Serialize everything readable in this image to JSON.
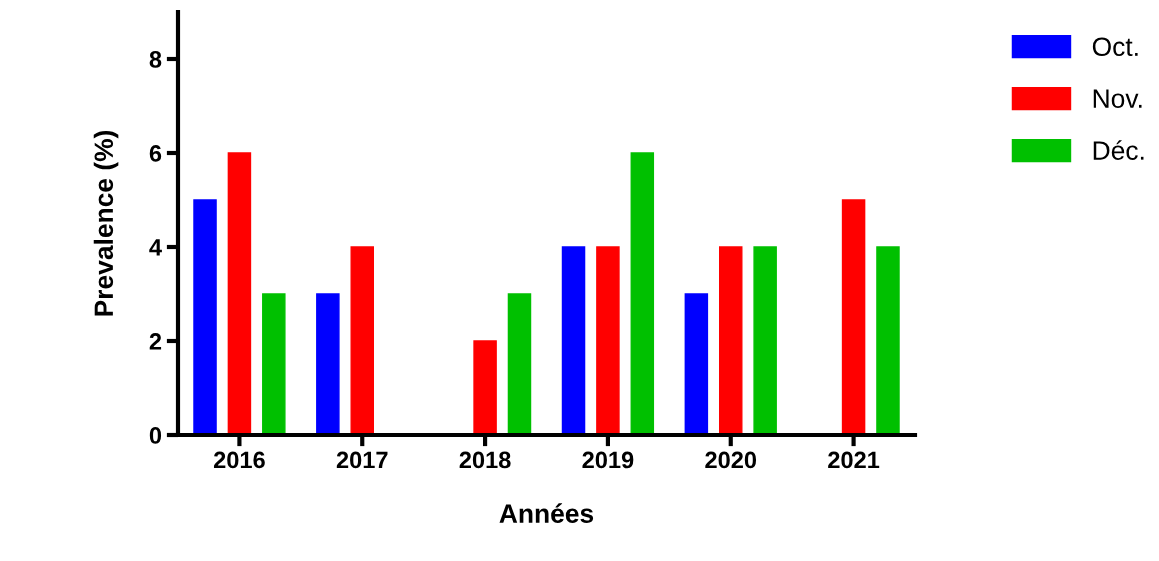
{
  "chart_data": {
    "type": "bar",
    "xlabel": "Années",
    "ylabel": "Prevalence (%)",
    "categories": [
      "2016",
      "2017",
      "2018",
      "2019",
      "2020",
      "2021"
    ],
    "series": [
      {
        "name": "Oct.",
        "color": "#0000ff",
        "values": [
          5,
          3,
          null,
          4,
          3,
          null
        ]
      },
      {
        "name": "Nov.",
        "color": "#ff0000",
        "values": [
          6,
          4,
          2,
          4,
          4,
          5
        ]
      },
      {
        "name": "Déc.",
        "color": "#00c000",
        "values": [
          3,
          null,
          3,
          6,
          4,
          4
        ]
      }
    ],
    "ylim": [
      0,
      9
    ],
    "yticks": [
      0,
      2,
      4,
      6,
      8
    ],
    "grid": false,
    "legend": "top right"
  }
}
